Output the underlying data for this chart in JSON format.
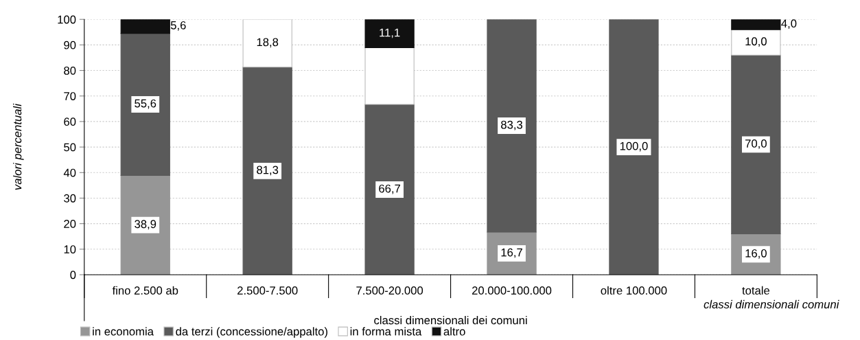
{
  "chart_data": {
    "type": "bar",
    "stacked": true,
    "xlabel": "classi dimensionali dei comuni",
    "ylabel": "valori percentuali",
    "categories": [
      "fino 2.500 ab",
      "2.500-7.500",
      "7.500-20.000",
      "20.000-100.000",
      "oltre 100.000",
      "totale"
    ],
    "series": [
      {
        "name": "in economia",
        "color": "#969696",
        "values": [
          38.9,
          null,
          null,
          16.7,
          null,
          16.0
        ],
        "value_labels": [
          "38,9",
          null,
          null,
          "16,7",
          null,
          "16,0"
        ]
      },
      {
        "name": "da terzi (concessione/appalto)",
        "color": "#5a5a5a",
        "values": [
          55.6,
          81.3,
          66.7,
          83.3,
          100.0,
          70.0
        ],
        "value_labels": [
          "55,6",
          "81,3",
          "66,7",
          "83,3",
          "100,0",
          "70,0"
        ]
      },
      {
        "name": "in forma mista",
        "color": "#ffffff",
        "values": [
          null,
          18.8,
          22.2,
          null,
          null,
          10.0
        ],
        "value_labels": [
          null,
          "18,8",
          null,
          null,
          null,
          "10,0"
        ]
      },
      {
        "name": "altro",
        "color": "#111111",
        "values": [
          5.6,
          null,
          11.1,
          null,
          null,
          4.0
        ],
        "value_labels": [
          "5,6",
          null,
          "11,1",
          null,
          null,
          "4,0"
        ]
      }
    ],
    "ylim": [
      0,
      100
    ],
    "yticks": [
      0,
      10,
      20,
      30,
      40,
      50,
      60,
      70,
      80,
      90,
      100
    ],
    "grid": "y",
    "legend": "bottom left",
    "annotations": [
      "classi dimensionali comuni"
    ]
  }
}
